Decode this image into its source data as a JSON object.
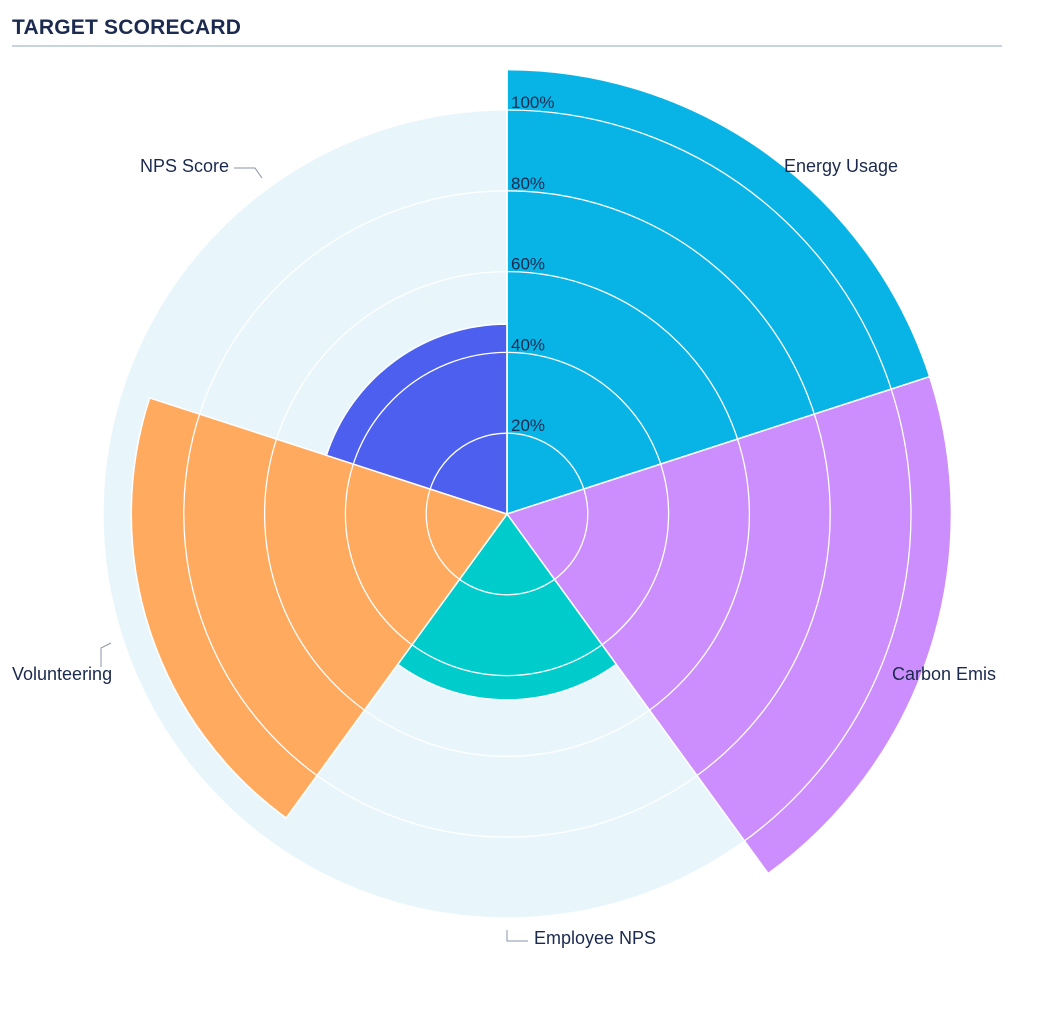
{
  "header": {
    "title": "TARGET SCORECARD"
  },
  "chart_data": {
    "type": "polar-area",
    "title": "TARGET SCORECARD",
    "categories": [
      "Energy Usage",
      "Carbon Emis",
      "Employee NPS",
      "Volunteering",
      "NPS Score"
    ],
    "values": [
      110,
      110,
      46,
      93,
      47
    ],
    "unit": "%",
    "colors": [
      "#08B4E6",
      "#CC8EFC",
      "#00CCCC",
      "#FFAA5E",
      "#4C5FEE"
    ],
    "radial_ticks": [
      "20%",
      "40%",
      "60%",
      "80%",
      "100%"
    ],
    "radial_range": [
      0,
      100
    ],
    "background_color": "#E8F6FC",
    "grid": true,
    "start_angle_deg": 0,
    "direction": "clockwise"
  }
}
